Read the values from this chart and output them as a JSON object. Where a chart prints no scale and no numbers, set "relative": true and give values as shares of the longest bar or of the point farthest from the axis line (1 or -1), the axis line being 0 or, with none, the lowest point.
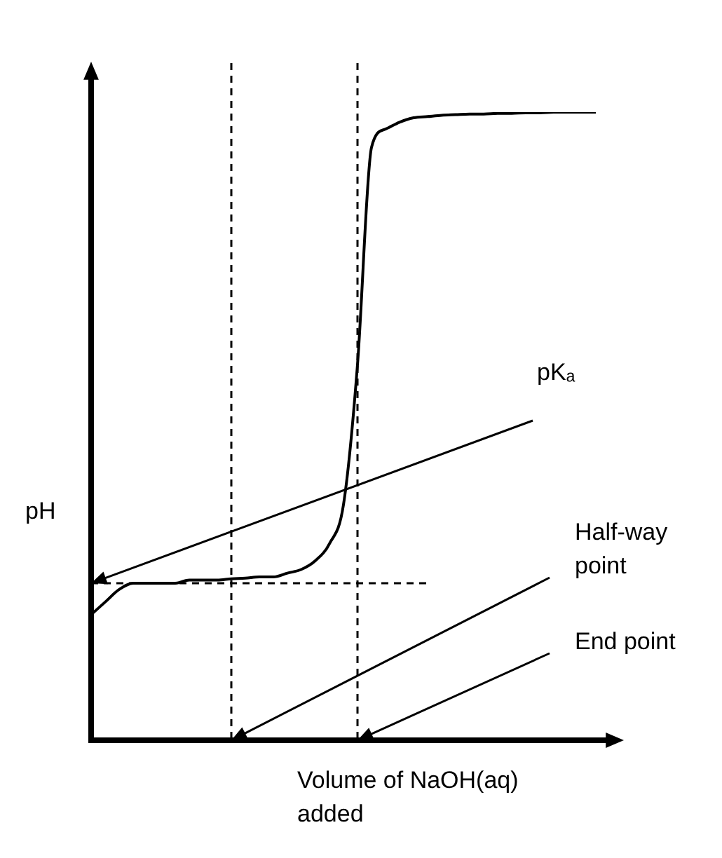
{
  "chart_data": {
    "type": "line",
    "relative": true,
    "ylabel": "pH",
    "xlabel": "Volume of NaOH(aq) added",
    "categories": [
      null,
      null,
      null,
      null,
      null,
      null,
      null,
      null,
      null,
      null,
      null,
      null,
      null,
      null,
      null,
      null,
      null,
      null,
      null,
      null,
      null,
      null,
      null,
      null,
      null,
      null,
      null,
      null,
      null,
      null,
      null,
      null,
      null,
      null,
      null,
      null,
      null
    ],
    "series": [
      {
        "color": "#000000",
        "values": [
          0.2,
          0.22,
          0.24,
          0.25,
          0.25,
          0.25,
          0.25,
          0.255,
          0.255,
          0.255,
          0.257,
          0.258,
          0.26,
          0.26,
          0.266,
          0.272,
          0.286,
          0.313,
          0.375,
          0.598,
          0.944,
          0.973,
          0.984,
          0.991,
          0.993,
          0.995,
          0.996,
          0.997,
          0.997,
          0.998,
          0.998,
          0.999,
          0.999,
          1,
          1,
          1,
          1
        ]
      }
    ],
    "marker": "none",
    "line_style": "solid",
    "grid": false,
    "legend": false,
    "tick_labels": false,
    "ref_lines": [
      {
        "axis": "y",
        "value": 0.25,
        "label": "pKₐ",
        "line_style": "dashed",
        "color": "#000000"
      }
    ],
    "annotations": [
      "Half-way point",
      "End point"
    ]
  }
}
